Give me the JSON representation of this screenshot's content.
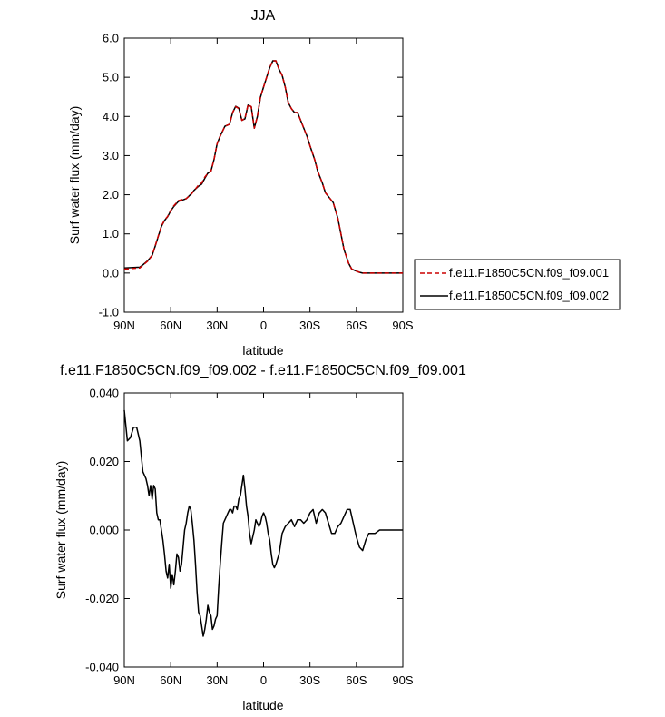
{
  "chart_data": [
    {
      "type": "line",
      "title": "JJA",
      "xlabel": "latitude",
      "ylabel": "Surf water flux (mm/day)",
      "xlim": [
        90,
        -90
      ],
      "ylim": [
        -1.0,
        6.0
      ],
      "x_ticks": [
        90,
        60,
        30,
        0,
        -30,
        -60,
        -90
      ],
      "x_tick_labels": [
        "90N",
        "60N",
        "30N",
        "0",
        "30S",
        "60S",
        "90S"
      ],
      "y_ticks": [
        -1.0,
        0.0,
        1.0,
        2.0,
        3.0,
        4.0,
        5.0,
        6.0
      ],
      "y_tick_labels": [
        "-1.0",
        "0.0",
        "1.0",
        "2.0",
        "3.0",
        "4.0",
        "5.0",
        "6.0"
      ],
      "legend_position": "right",
      "x": [
        90,
        80,
        78,
        75,
        72,
        70,
        68,
        66,
        64,
        62,
        60,
        58,
        55,
        52,
        50,
        47,
        45,
        42,
        40,
        38,
        36,
        34,
        32,
        30,
        28,
        25,
        22,
        20,
        18,
        16,
        14,
        12,
        10,
        8,
        6,
        4,
        2,
        0,
        -2,
        -4,
        -6,
        -8,
        -10,
        -12,
        -14,
        -16,
        -18,
        -20,
        -22,
        -25,
        -28,
        -30,
        -33,
        -35,
        -38,
        -40,
        -42,
        -45,
        -48,
        -50,
        -52,
        -55,
        -57,
        -60,
        -62,
        -64,
        -66,
        -68,
        -70,
        -72,
        -75,
        -78,
        -80,
        -85,
        -90
      ],
      "series": [
        {
          "name": "f.e11.F1850C5CN.f09_f09.001",
          "color": "#cc0000",
          "style": "dashed",
          "values": [
            0.1,
            0.13,
            0.2,
            0.3,
            0.45,
            0.7,
            0.95,
            1.2,
            1.35,
            1.45,
            1.6,
            1.72,
            1.85,
            1.88,
            1.9,
            2.0,
            2.1,
            2.25,
            2.3,
            2.45,
            2.55,
            2.6,
            2.9,
            3.3,
            3.5,
            3.75,
            3.8,
            4.1,
            4.25,
            4.2,
            3.9,
            3.95,
            4.3,
            4.25,
            3.7,
            4.0,
            4.5,
            4.75,
            5.0,
            5.25,
            5.42,
            5.42,
            5.2,
            5.05,
            4.75,
            4.35,
            4.2,
            4.1,
            4.1,
            3.8,
            3.5,
            3.25,
            2.9,
            2.6,
            2.3,
            2.05,
            1.95,
            1.8,
            1.4,
            1.0,
            0.6,
            0.25,
            0.1,
            0.05,
            0.02,
            0.0,
            0.0,
            0.0,
            0.0,
            0.0,
            0.0,
            0.0,
            0.0,
            0.0,
            0.0
          ]
        },
        {
          "name": "f.e11.F1850C5CN.f09_f09.002",
          "color": "#000000",
          "style": "solid",
          "values": [
            0.13,
            0.15,
            0.21,
            0.31,
            0.45,
            0.69,
            0.94,
            1.19,
            1.34,
            1.44,
            1.59,
            1.7,
            1.83,
            1.87,
            1.9,
            2.01,
            2.11,
            2.22,
            2.27,
            2.42,
            2.55,
            2.6,
            2.9,
            3.3,
            3.5,
            3.75,
            3.8,
            4.1,
            4.26,
            4.21,
            3.9,
            3.94,
            4.29,
            4.25,
            3.7,
            4.0,
            4.49,
            4.75,
            5.0,
            5.25,
            5.42,
            5.42,
            5.2,
            5.05,
            4.75,
            4.35,
            4.2,
            4.1,
            4.1,
            3.8,
            3.5,
            3.25,
            2.9,
            2.6,
            2.3,
            2.05,
            1.95,
            1.8,
            1.4,
            1.0,
            0.6,
            0.25,
            0.1,
            0.05,
            0.02,
            0.0,
            0.0,
            0.0,
            0.0,
            0.0,
            0.0,
            0.0,
            0.0,
            0.0,
            0.0
          ]
        }
      ]
    },
    {
      "type": "line",
      "title": "f.e11.F1850C5CN.f09_f09.002 - f.e11.F1850C5CN.f09_f09.001",
      "xlabel": "latitude",
      "ylabel": "Surf water flux (mm/day)",
      "xlim": [
        90,
        -90
      ],
      "ylim": [
        -0.04,
        0.04
      ],
      "x_ticks": [
        90,
        60,
        30,
        0,
        -30,
        -60,
        -90
      ],
      "x_tick_labels": [
        "90N",
        "60N",
        "30N",
        "0",
        "30S",
        "60S",
        "90S"
      ],
      "y_ticks": [
        -0.04,
        -0.02,
        0.0,
        0.02,
        0.04
      ],
      "y_tick_labels": [
        "-0.040",
        "-0.020",
        "0.000",
        "0.020",
        "0.040"
      ],
      "series": [
        {
          "color": "#000000",
          "style": "solid",
          "x": [
            90,
            88,
            86,
            84,
            82,
            80,
            78,
            76,
            75,
            74,
            73,
            72,
            71,
            70,
            69,
            68,
            67,
            66,
            65,
            64,
            63,
            62,
            61,
            60,
            59,
            58,
            57,
            56,
            55,
            54,
            53,
            52,
            51,
            50,
            49,
            48,
            47,
            46,
            45,
            44,
            43,
            42,
            41,
            40,
            39,
            38,
            37,
            36,
            35,
            34,
            33,
            32,
            31,
            30,
            29,
            28,
            27,
            26,
            25,
            24,
            23,
            22,
            21,
            20,
            19,
            18,
            17,
            16,
            15,
            14,
            13,
            12,
            11,
            10,
            9,
            8,
            7,
            6,
            5,
            4,
            3,
            2,
            1,
            0,
            -1,
            -2,
            -3,
            -4,
            -5,
            -6,
            -7,
            -8,
            -10,
            -12,
            -14,
            -16,
            -18,
            -20,
            -22,
            -24,
            -26,
            -28,
            -30,
            -32,
            -34,
            -36,
            -38,
            -40,
            -42,
            -44,
            -46,
            -48,
            -50,
            -52,
            -54,
            -56,
            -58,
            -60,
            -62,
            -64,
            -66,
            -68,
            -70,
            -72,
            -75,
            -78,
            -80,
            -85,
            -90
          ],
          "values": [
            0.035,
            0.026,
            0.027,
            0.03,
            0.03,
            0.026,
            0.017,
            0.015,
            0.013,
            0.01,
            0.013,
            0.009,
            0.013,
            0.012,
            0.005,
            0.003,
            0.003,
            0.0,
            -0.003,
            -0.007,
            -0.012,
            -0.014,
            -0.01,
            -0.017,
            -0.013,
            -0.016,
            -0.012,
            -0.007,
            -0.008,
            -0.012,
            -0.01,
            -0.005,
            0.0,
            0.002,
            0.005,
            0.007,
            0.006,
            0.002,
            -0.003,
            -0.01,
            -0.018,
            -0.024,
            -0.025,
            -0.028,
            -0.031,
            -0.029,
            -0.026,
            -0.022,
            -0.024,
            -0.025,
            -0.029,
            -0.028,
            -0.026,
            -0.025,
            -0.017,
            -0.01,
            -0.004,
            0.002,
            0.003,
            0.004,
            0.005,
            0.006,
            0.006,
            0.005,
            0.007,
            0.007,
            0.006,
            0.009,
            0.01,
            0.013,
            0.016,
            0.012,
            0.007,
            0.004,
            -0.001,
            -0.004,
            -0.002,
            0.0,
            0.003,
            0.002,
            0.001,
            0.002,
            0.004,
            0.005,
            0.004,
            0.002,
            -0.001,
            -0.003,
            -0.007,
            -0.01,
            -0.011,
            -0.01,
            -0.007,
            -0.001,
            0.001,
            0.002,
            0.003,
            0.001,
            0.003,
            0.003,
            0.002,
            0.003,
            0.005,
            0.006,
            0.002,
            0.005,
            0.006,
            0.005,
            0.002,
            -0.001,
            -0.001,
            0.001,
            0.002,
            0.004,
            0.006,
            0.006,
            0.002,
            -0.002,
            -0.005,
            -0.006,
            -0.003,
            -0.001,
            -0.001,
            -0.001,
            0.0,
            0.0,
            0.0,
            0.0,
            0.0
          ]
        }
      ]
    }
  ]
}
